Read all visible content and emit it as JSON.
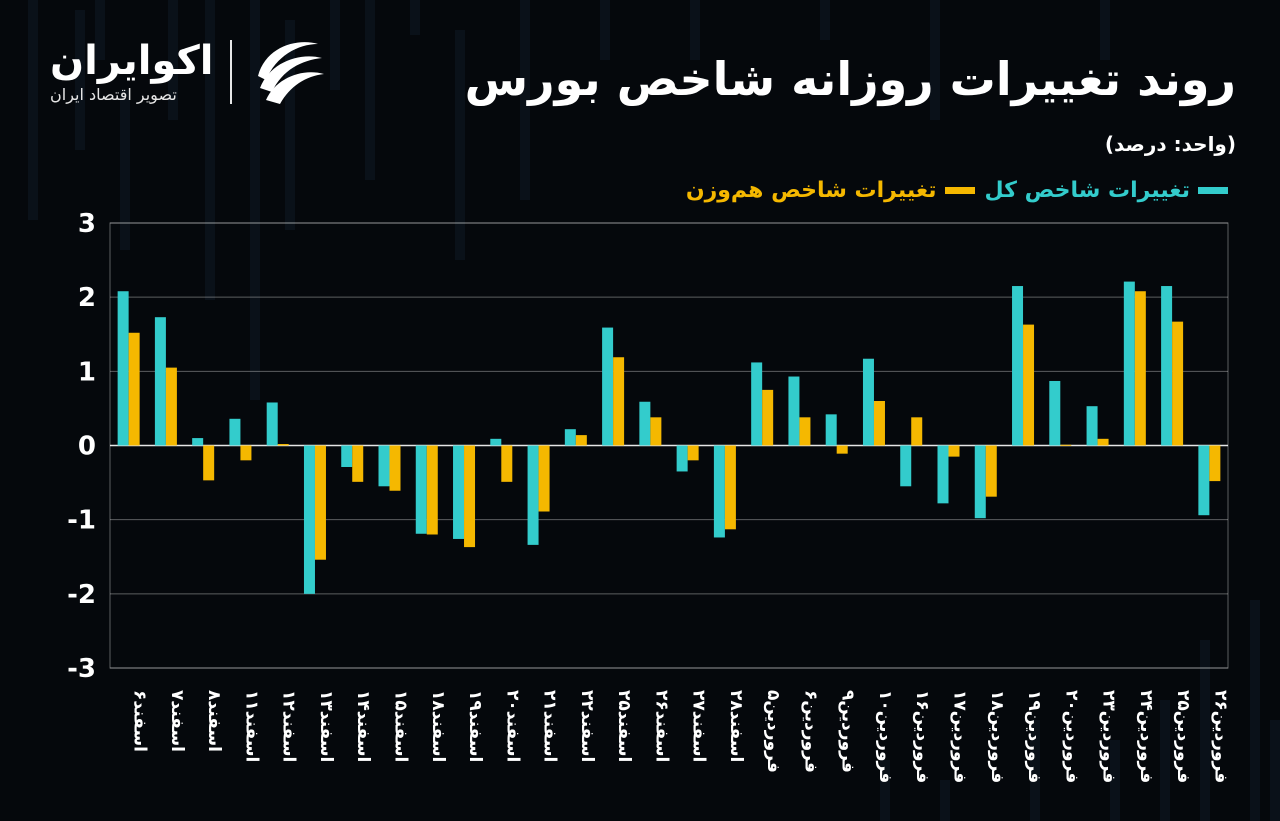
{
  "header": {
    "title": "روند تغییرات روزانه شاخص بورس",
    "unit": "(واحد: درصد)"
  },
  "logo": {
    "name": "اکوایران",
    "tagline": "تصویر اقتصاد ایران",
    "icon": "ecoiran-swoosh-icon"
  },
  "colors": {
    "series1": "#33cccc",
    "series2": "#f5b800",
    "grid": "#ffffff",
    "background": "#05080c"
  },
  "chart_data": {
    "type": "bar",
    "title": "روند تغییرات روزانه شاخص بورس",
    "ylim": [
      -3,
      3
    ],
    "yticks": [
      {
        "value": 3,
        "label": "3"
      },
      {
        "value": 2,
        "label": "2"
      },
      {
        "value": 1,
        "label": "1"
      },
      {
        "value": 0,
        "label": "0"
      },
      {
        "value": -1,
        "label": "-1"
      },
      {
        "value": -2,
        "label": "-2"
      },
      {
        "value": -3,
        "label": "-3"
      }
    ],
    "grid": true,
    "legend": "top-right",
    "categories": [
      "اسفند۶",
      "اسفند۷",
      "اسفند۸",
      "اسفند۱۱",
      "اسفند۱۲",
      "اسفند۱۳",
      "اسفند۱۴",
      "اسفند۱۵",
      "اسفند۱۸",
      "اسفند۱۹",
      "اسفند۲۰",
      "اسفند۲۱",
      "اسفند۲۲",
      "اسفند۲۵",
      "اسفند۲۶",
      "اسفند۲۷",
      "اسفند۲۸",
      "فروردین۵",
      "فروردین۶",
      "فروردین۹",
      "فروردین۱۰",
      "فروردین۱۶",
      "فروردین۱۷",
      "فروردین۱۸",
      "فروردین۱۹",
      "فروردین۲۰",
      "فروردین۲۳",
      "فروردین۲۴",
      "فروردین۲۵",
      "فروردین۲۶"
    ],
    "series": [
      {
        "name": "تغییرات شاخص کل",
        "color": "#33cccc",
        "values": [
          2.08,
          1.73,
          0.1,
          0.36,
          0.58,
          -2.0,
          -0.29,
          -0.55,
          -1.19,
          -1.26,
          0.09,
          -1.34,
          0.22,
          1.59,
          0.59,
          -0.35,
          -1.24,
          1.12,
          0.93,
          0.42,
          1.17,
          -0.55,
          -0.78,
          -0.98,
          2.15,
          0.87,
          0.53,
          2.21,
          2.15,
          -0.94
        ]
      },
      {
        "name": "تغییرات شاخص هم‌وزن",
        "color": "#f5b800",
        "values": [
          1.52,
          1.05,
          -0.47,
          -0.2,
          0.02,
          -1.54,
          -0.49,
          -0.61,
          -1.2,
          -1.37,
          -0.49,
          -0.89,
          0.14,
          1.19,
          0.38,
          -0.2,
          -1.13,
          0.75,
          0.38,
          -0.11,
          0.6,
          0.38,
          -0.15,
          -0.69,
          1.63,
          0.01,
          0.09,
          2.08,
          1.67,
          -0.48
        ]
      }
    ]
  }
}
